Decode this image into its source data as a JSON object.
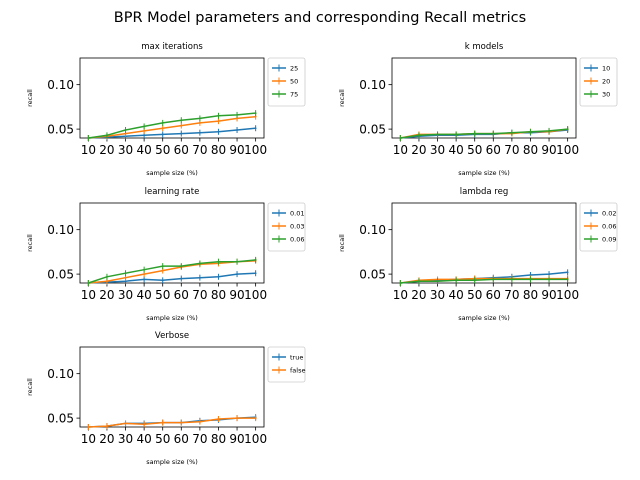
{
  "figure_title": "BPR Model parameters and corresponding Recall metrics",
  "chart_data": [
    {
      "type": "line",
      "title": "max iterations",
      "xlabel": "sample size (%)",
      "ylabel": "recall",
      "x": [
        10,
        20,
        30,
        40,
        50,
        60,
        70,
        80,
        90,
        100
      ],
      "xticks": [
        "10",
        "20",
        "30",
        "40",
        "50",
        "60",
        "70",
        "80",
        "90",
        "100"
      ],
      "ylim": [
        0.04,
        0.13
      ],
      "yticks": [
        0.05,
        0.1
      ],
      "ytick_labels": [
        "0.05",
        "0.10"
      ],
      "legend_position": "outside-right",
      "series": [
        {
          "name": "25",
          "color": "#1f77b4",
          "values": [
            0.04,
            0.041,
            0.042,
            0.043,
            0.044,
            0.045,
            0.046,
            0.047,
            0.049,
            0.051
          ]
        },
        {
          "name": "50",
          "color": "#ff7f0e",
          "values": [
            0.04,
            0.042,
            0.045,
            0.048,
            0.051,
            0.054,
            0.057,
            0.059,
            0.062,
            0.064
          ]
        },
        {
          "name": "75",
          "color": "#2ca02c",
          "values": [
            0.04,
            0.043,
            0.049,
            0.053,
            0.057,
            0.06,
            0.062,
            0.065,
            0.066,
            0.068
          ]
        }
      ]
    },
    {
      "type": "line",
      "title": "k models",
      "xlabel": "sample size (%)",
      "ylabel": "recall",
      "x": [
        10,
        20,
        30,
        40,
        50,
        60,
        70,
        80,
        90,
        100
      ],
      "xticks": [
        "10",
        "20",
        "30",
        "40",
        "50",
        "60",
        "70",
        "80",
        "90",
        "100"
      ],
      "ylim": [
        0.04,
        0.13
      ],
      "yticks": [
        0.05,
        0.1
      ],
      "ytick_labels": [
        "0.05",
        "0.10"
      ],
      "legend_position": "outside-right",
      "series": [
        {
          "name": "10",
          "color": "#1f77b4",
          "values": [
            0.04,
            0.042,
            0.043,
            0.043,
            0.044,
            0.044,
            0.046,
            0.046,
            0.047,
            0.049
          ]
        },
        {
          "name": "20",
          "color": "#ff7f0e",
          "values": [
            0.04,
            0.044,
            0.044,
            0.044,
            0.045,
            0.045,
            0.045,
            0.047,
            0.047,
            0.05
          ]
        },
        {
          "name": "30",
          "color": "#2ca02c",
          "values": [
            0.04,
            0.043,
            0.044,
            0.044,
            0.045,
            0.045,
            0.046,
            0.047,
            0.048,
            0.05
          ]
        }
      ]
    },
    {
      "type": "line",
      "title": "learning rate",
      "xlabel": "sample size (%)",
      "ylabel": "recall",
      "x": [
        10,
        20,
        30,
        40,
        50,
        60,
        70,
        80,
        90,
        100
      ],
      "xticks": [
        "10",
        "20",
        "30",
        "40",
        "50",
        "60",
        "70",
        "80",
        "90",
        "100"
      ],
      "ylim": [
        0.04,
        0.13
      ],
      "yticks": [
        0.05,
        0.1
      ],
      "ytick_labels": [
        "0.05",
        "0.10"
      ],
      "legend_position": "outside-right",
      "series": [
        {
          "name": "0.01",
          "color": "#1f77b4",
          "values": [
            0.04,
            0.041,
            0.042,
            0.044,
            0.043,
            0.045,
            0.046,
            0.047,
            0.05,
            0.051
          ]
        },
        {
          "name": "0.03",
          "color": "#ff7f0e",
          "values": [
            0.04,
            0.042,
            0.046,
            0.05,
            0.054,
            0.058,
            0.061,
            0.062,
            0.064,
            0.065
          ]
        },
        {
          "name": "0.06",
          "color": "#2ca02c",
          "values": [
            0.04,
            0.047,
            0.051,
            0.055,
            0.059,
            0.059,
            0.062,
            0.064,
            0.064,
            0.066
          ]
        }
      ]
    },
    {
      "type": "line",
      "title": "lambda reg",
      "xlabel": "sample size (%)",
      "ylabel": "recall",
      "x": [
        10,
        20,
        30,
        40,
        50,
        60,
        70,
        80,
        90,
        100
      ],
      "xticks": [
        "10",
        "20",
        "30",
        "40",
        "50",
        "60",
        "70",
        "80",
        "90",
        "100"
      ],
      "ylim": [
        0.04,
        0.13
      ],
      "yticks": [
        0.05,
        0.1
      ],
      "ytick_labels": [
        "0.05",
        "0.10"
      ],
      "legend_position": "outside-right",
      "series": [
        {
          "name": "0.02",
          "color": "#1f77b4",
          "values": [
            0.04,
            0.042,
            0.043,
            0.044,
            0.045,
            0.046,
            0.047,
            0.049,
            0.05,
            0.052
          ]
        },
        {
          "name": "0.06",
          "color": "#ff7f0e",
          "values": [
            0.04,
            0.043,
            0.044,
            0.044,
            0.045,
            0.045,
            0.045,
            0.045,
            0.045,
            0.045
          ]
        },
        {
          "name": "0.09",
          "color": "#2ca02c",
          "values": [
            0.04,
            0.042,
            0.042,
            0.043,
            0.043,
            0.044,
            0.044,
            0.044,
            0.044,
            0.044
          ]
        }
      ]
    },
    {
      "type": "line",
      "title": "Verbose",
      "xlabel": "sample size (%)",
      "ylabel": "recall",
      "x": [
        10,
        20,
        30,
        40,
        50,
        60,
        70,
        80,
        90,
        100
      ],
      "xticks": [
        "10",
        "20",
        "30",
        "40",
        "50",
        "60",
        "70",
        "80",
        "90",
        "100"
      ],
      "ylim": [
        0.04,
        0.13
      ],
      "yticks": [
        0.05,
        0.1
      ],
      "ytick_labels": [
        "0.05",
        "0.10"
      ],
      "legend_position": "outside-right",
      "series": [
        {
          "name": "true",
          "color": "#1f77b4",
          "values": [
            0.04,
            0.041,
            0.044,
            0.044,
            0.045,
            0.045,
            0.047,
            0.048,
            0.05,
            0.051
          ]
        },
        {
          "name": "false",
          "color": "#ff7f0e",
          "values": [
            0.04,
            0.041,
            0.044,
            0.043,
            0.045,
            0.045,
            0.046,
            0.049,
            0.05,
            0.05
          ]
        }
      ]
    }
  ]
}
